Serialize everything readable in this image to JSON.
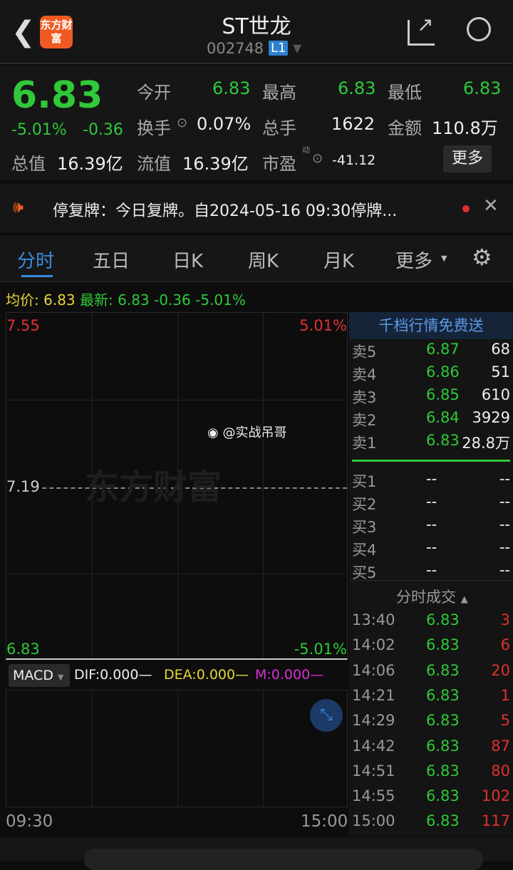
{
  "header": {
    "title": "ST世龙",
    "code": "002748",
    "level_badge": "L1",
    "logo_text": "东方财富"
  },
  "quote": {
    "price": "6.83",
    "change_pct": "-5.01%",
    "change": "-0.36",
    "fields": [
      {
        "label": "今开",
        "value": "6.83"
      },
      {
        "label": "最高",
        "value": "6.83"
      },
      {
        "label": "最低",
        "value": "6.83"
      },
      {
        "label": "换手",
        "value": "0.07%"
      },
      {
        "label": "总手",
        "value": "1622"
      },
      {
        "label": "金额",
        "value": "110.8万"
      },
      {
        "label": "总值",
        "value": "16.39亿"
      },
      {
        "label": "流值",
        "value": "16.39亿"
      },
      {
        "label": "市盈",
        "value": "-41.12",
        "sup": "动"
      }
    ],
    "more_label": "更多"
  },
  "notice": {
    "text": "停复牌：今日复牌。自2024-05-16 09:30停牌..."
  },
  "tabs": [
    {
      "label": "分时"
    },
    {
      "label": "五日"
    },
    {
      "label": "日K"
    },
    {
      "label": "周K"
    },
    {
      "label": "月K"
    },
    {
      "label": "更多"
    }
  ],
  "infoline": {
    "avg_label": "均价:",
    "avg": "6.83",
    "latest_label": "最新:",
    "latest": "6.83",
    "change": "-0.36",
    "pct": "-5.01%"
  },
  "chart": {
    "y_top": "7.55",
    "y_mid": "7.19",
    "y_bottom": "6.83",
    "pct_top": "5.01%",
    "pct_bottom": "-5.01%",
    "x_start": "09:30",
    "x_end": "15:00",
    "watermark": "@实战吊哥"
  },
  "macd": {
    "selector": "MACD",
    "dif": "DIF:0.000—",
    "dea": "DEA:0.000—",
    "m": "M:0.000—"
  },
  "book": {
    "banner": "千档行情免费送",
    "asks": [
      {
        "label": "卖5",
        "price": "6.87",
        "vol": "68"
      },
      {
        "label": "卖4",
        "price": "6.86",
        "vol": "51"
      },
      {
        "label": "卖3",
        "price": "6.85",
        "vol": "610"
      },
      {
        "label": "卖2",
        "price": "6.84",
        "vol": "3929"
      },
      {
        "label": "卖1",
        "price": "6.83",
        "vol": "28.8万"
      }
    ],
    "bids": [
      {
        "label": "买1",
        "price": "--",
        "vol": "--"
      },
      {
        "label": "买2",
        "price": "--",
        "vol": "--"
      },
      {
        "label": "买3",
        "price": "--",
        "vol": "--"
      },
      {
        "label": "买4",
        "price": "--",
        "vol": "--"
      },
      {
        "label": "买5",
        "price": "--",
        "vol": "--"
      }
    ],
    "trades_title": "分时成交",
    "trades": [
      {
        "time": "13:40",
        "price": "6.83",
        "vol": "3"
      },
      {
        "time": "14:02",
        "price": "6.83",
        "vol": "6"
      },
      {
        "time": "14:06",
        "price": "6.83",
        "vol": "20"
      },
      {
        "time": "14:21",
        "price": "6.83",
        "vol": "1"
      },
      {
        "time": "14:29",
        "price": "6.83",
        "vol": "5"
      },
      {
        "time": "14:42",
        "price": "6.83",
        "vol": "87"
      },
      {
        "time": "14:51",
        "price": "6.83",
        "vol": "80"
      },
      {
        "time": "14:55",
        "price": "6.83",
        "vol": "102"
      },
      {
        "time": "15:00",
        "price": "6.83",
        "vol": "117"
      }
    ]
  },
  "colors": {
    "up": "#e0312f",
    "down": "#2fc93a",
    "accent": "#3b8be0",
    "logo": "#f05a22"
  }
}
